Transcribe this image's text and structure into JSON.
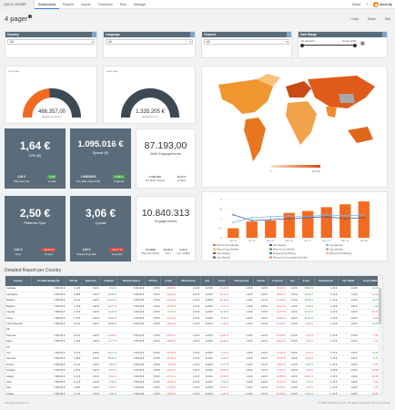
{
  "topbar": {
    "app_tab": "QUICK SHARE",
    "tabs": [
      "Dashboards",
      "Explore",
      "Import",
      "Transform",
      "Plan",
      "Manage"
    ],
    "user": "Sticky",
    "logo": "adverity"
  },
  "page": {
    "title": "4 pager",
    "tools": {
      "add": "+ Add",
      "share": "Share",
      "edit": "Edit"
    }
  },
  "filters": [
    {
      "label": "Country",
      "value": "All"
    },
    {
      "label": "Language",
      "value": "All"
    },
    {
      "label": "Channel",
      "value": "All"
    },
    {
      "label": "Date Range",
      "start": "01.06.2017",
      "end": "31.01.2018"
    }
  ],
  "gauges": [
    {
      "label": "Last year",
      "value": "466.357,00",
      "sub": "Budget (Cost) (Yr)",
      "min": "0",
      "max": "1.000.000",
      "fraction": 0.47
    },
    {
      "label": "Last year",
      "value": "1.335.205 €",
      "sub": "Budget (€) (Yr)",
      "min": "0",
      "max": "1.500.000",
      "fraction": 0.89
    }
  ],
  "kpis": {
    "cpa": {
      "value": "1,64 €",
      "label": "CPA (€)",
      "f1v": "1,61 €",
      "f1l": "Planned Cpa",
      "f2v": "2,65",
      "f2l": "Δ Cpa"
    },
    "spend": {
      "value": "1.095.016 €",
      "label": "Spend (€)",
      "f1v": "1.066.006 €",
      "f1l": "Pre Rate Spend (€)",
      "f2v": "5,45 €",
      "f2l": "Δ Spend"
    },
    "web": {
      "value": "87.193,00",
      "label": "Web Engagements",
      "f1v": "1.000.000",
      "f1l": "Pre Rate Spend",
      "f2v": "15,47 €",
      "f2l": "Δ Web"
    },
    "cpv": {
      "value": "2,50 €",
      "label": "Planned Cpvr",
      "f1v": "1,61 €",
      "f1l": "Cpvr",
      "f2v": "-26,94 %",
      "f2l": "Δ Cpvr"
    },
    "cpvisit": {
      "value": "3,06 €",
      "label": "Cpvisit",
      "f1v": "1,61 €",
      "f1l": "Planned Cpvisit",
      "f2v": "-19,77 %",
      "f2l": "Δ Cpvisit"
    },
    "eng": {
      "value": "10.840.313",
      "label": "Engagements",
      "f1v": "413.868",
      "f1l": "Planned Clicks",
      "f2v": "30,39 €",
      "f2l": "Cpvr",
      "f3v": "3,76 €",
      "f3l": "Cpc 10000"
    }
  },
  "map": {
    "legend_min": "0",
    "legend_max": "500.000"
  },
  "chart_data": {
    "type": "bar",
    "categories": [
      "Jun '17",
      "Jul '17",
      "Aug '17",
      "Sep '17",
      "Oct '17",
      "Nov '17",
      "Dec '17",
      "Jan '18"
    ],
    "series": [
      {
        "name": "Planned Cpm (Weekly)",
        "values": [
          0.5,
          0.85,
          0.9,
          1.3,
          1.4,
          1.6,
          1.75,
          1.9
        ]
      },
      {
        "name": "Cpc (Weekly)",
        "values": [
          1.2,
          0.9,
          0.95,
          1.0,
          1.05,
          1.1,
          1.0,
          1.05
        ]
      },
      {
        "name": "Cpa (Weekly)",
        "values": [
          0.8,
          1.05,
          1.1,
          1.15,
          1.1,
          1.2,
          1.15,
          1.2
        ]
      }
    ],
    "ylabel": "",
    "ylim": [
      0,
      2
    ],
    "legend": [
      "Planned Cpm (Weekly)",
      "Cpc (Weekly)",
      "Cpa (Weekly)",
      "Planned Cpa (Weekly)",
      "Planned Cpc (Weekly)",
      "Cpm (Weekly)",
      "Cost (Weekly)",
      "Engagements (Weekly)",
      "Planned Cost (Weekly)",
      "Cpvr (Weekly)",
      "Planned Cost (cumulated) (Weekly)"
    ]
  },
  "report": {
    "title": "Detailed Report per Country",
    "columns": [
      "Country",
      "Pre Rate Budget (€)",
      "CPA (€)",
      "Spend (€)",
      "Δ Spend",
      "Planned Spend",
      "CPV (€)",
      "Δ Cpv",
      "Planned Cpv",
      "Cpa",
      "Δ Cpa",
      "Planned Cpa",
      "Cpvisit",
      "Δ Cpvisit",
      "Cpc",
      "Δ Cpc",
      "Planned Cpc",
      "Cpc 10000",
      "Δ Cpc 10000"
    ],
    "rows": [
      [
        "Australia",
        "7.050,00 €",
        "1,11 €",
        "4,92 €",
        "3,92 %",
        "7.040,00 €",
        "2,50 €",
        "-18,58 %",
        "2,01 €",
        "11,69 €",
        "-14,20 %",
        "1,00 €",
        "2,40 €",
        "-50,11 %",
        "1,00 €",
        "48,60 %",
        "1,15 €",
        "1,00 €",
        "49,37 %"
      ],
      [
        "Azerbaijan",
        "7.050,00 €",
        "1,09 €",
        "4,92 €",
        "40,00 %",
        "7.040,00 €",
        "2,50 €",
        "-19,54 %",
        "2,01 €",
        "11,69 €",
        "-19,12 %",
        "1,00 €",
        "2,40 €",
        "-58,30 %",
        "1,00 €",
        "10,63 %",
        "1,15 €",
        "1,00 €",
        "-12,58 %"
      ],
      [
        "Belgium",
        "7.050,00 €",
        "1,13 €",
        "4,92 €",
        "-20,23 %",
        "7.040,00 €",
        "2,50 €",
        "-41,25 %",
        "2,01 €",
        "11,69 €",
        "-32,16 %",
        "1,00 €",
        "2,40 €",
        "-21,05 %",
        "1,00 €",
        "32,35 %",
        "1,15 €",
        "1,00 €",
        "19,07 %"
      ],
      [
        "Bulgaria",
        "7.050,00 €",
        "1,11 €",
        "4,92 €",
        "-14,17 %",
        "7.040,00 €",
        "2,50 €",
        "-16,45 %",
        "2,01 €",
        "11,69 €",
        "-9,21 %",
        "1,00 €",
        "2,40 €",
        "-52,44 %",
        "1,00 €",
        "8,38 %",
        "1,15 €",
        "1,00 €",
        "3,22 %"
      ],
      [
        "Canada",
        "7.050,00 €",
        "1,13 €",
        "4,92 €",
        "10,32 %",
        "7.040,00 €",
        "2,50 €",
        "17,22 %",
        "2,01 €",
        "11,69 €",
        "12,42 %",
        "1,00 €",
        "2,40 €",
        "-33,37 %",
        "1,00 €",
        "37,01 %",
        "1,15 €",
        "1,00 €",
        "-13,47 %"
      ],
      [
        "China",
        "7.050,00 €",
        "1,07 €",
        "4,92 €",
        "29,65 %",
        "7.040,00 €",
        "2,50 €",
        "-21,64 %",
        "2,01 €",
        "11,69 €",
        "8,76 %",
        "1,00 €",
        "2,40 €",
        "-45,09 %",
        "1,00 €",
        "21,18 %",
        "1,15 €",
        "1,00 €",
        "-9,28 %"
      ],
      [
        "Czech Republic",
        "7.050,00 €",
        "1,14 €",
        "4,92 €",
        "38,88 %",
        "7.040,00 €",
        "2,50 €",
        "-18,16 %",
        "2,01 €",
        "11,69 €",
        "-3,10 %",
        "1,00 €",
        "2,40 €",
        "-37,30 %",
        "1,00 €",
        "-6,96 %",
        "1,15 €",
        "1,00 €",
        "14,61 %"
      ],
      [
        "DE",
        "",
        "",
        "",
        "",
        "",
        "",
        "",
        "",
        "",
        "",
        "",
        "",
        "",
        "",
        "",
        "",
        "",
        ""
      ],
      [
        "Denmark",
        "7.050,00 €",
        "1,10 €",
        "4,92 €",
        "-21,68 %",
        "7.040,00 €",
        "2,50 €",
        "-45,70 %",
        "2,01 €",
        "11,69 €",
        "-14,81 %",
        "1,00 €",
        "2,40 €",
        "-22,18 %",
        "1,00 €",
        "-1,47 %",
        "1,15 €",
        "1,00 €",
        "-6,35 %"
      ],
      [
        "Egypt",
        "7.050,00 €",
        "1,11 €",
        "4,92 €",
        "-5,77 %",
        "7.040,00 €",
        "2,50 €",
        "-38,90 %",
        "2,01 €",
        "11,69 €",
        "-13,20 %",
        "1,00 €",
        "2,40 €",
        "-28,40 %",
        "1,00 €",
        "-7,92 %",
        "1,15 €",
        "1,00 €",
        "-2,37 %"
      ],
      [
        "FR",
        "",
        "",
        "",
        "",
        "",
        "",
        "",
        "",
        "",
        "",
        "",
        "",
        "",
        "",
        "",
        "",
        "",
        ""
      ],
      [
        "GLT",
        "7.050,00 €",
        "1,14 €",
        "4,92 €",
        "29,71 %",
        "7.040,00 €",
        "2,50 €",
        "-31,56 %",
        "2,01 €",
        "11,69 €",
        "-7,63 %",
        "1,00 €",
        "2,40 €",
        "-11,92 %",
        "1,00 €",
        "-4,31 %",
        "1,15 €",
        "1,00 €",
        "14,49 %"
      ],
      [
        "Germany",
        "7.050,00 €",
        "1,08 €",
        "4,92 €",
        "35,32 %",
        "7.040,00 €",
        "2,50 €",
        "-17,15 %",
        "2,01 €",
        "11,69 €",
        "-0,26 %",
        "1,00 €",
        "2,40 €",
        "-42,78 %",
        "1,00 €",
        "-8,93 %",
        "1,15 €",
        "1,00 €",
        "5,71 %"
      ],
      [
        "Greece",
        "7.050,00 €",
        "1,13 €",
        "4,92 €",
        "-8,51 %",
        "7.040,00 €",
        "2,50 €",
        "-3,52 %",
        "2,01 €",
        "11,69 €",
        "5,77 %",
        "1,00 €",
        "2,40 €",
        "-18,40 %",
        "1,00 €",
        "6,54 %",
        "1,15 €",
        "1,00 €",
        "-5,33 %"
      ],
      [
        "Hungary",
        "7.050,00 €",
        "1,10 €",
        "4,92 €",
        "-0,12 %",
        "7.040,00 €",
        "2,50 €",
        "-24,87 %",
        "2,01 €",
        "11,69 €",
        "-14,01 %",
        "1,00 €",
        "2,40 €",
        "-17,24 %",
        "1,00 €",
        "-4,09 %",
        "1,15 €",
        "1,00 €",
        "-16,92 %"
      ],
      [
        "Ireland",
        "7.050,00 €",
        "1,12 €",
        "4,92 €",
        "-8,44 %",
        "7.040,00 €",
        "2,50 €",
        "-27,65 %",
        "2,01 €",
        "11,69 €",
        "-19,68 %",
        "1,00 €",
        "2,40 €",
        "-46,68 %",
        "1,00 €",
        "-19,16 %",
        "1,15 €",
        "1,00 €",
        "-10,25 %"
      ],
      [
        "India",
        "7.050,00 €",
        "1,12 €",
        "4,92 €",
        "2,58 %",
        "7.040,00 €",
        "2,50 €",
        "-13,95 %",
        "2,01 €",
        "11,69 €",
        "9,64 %",
        "1,00 €",
        "2,40 €",
        "-51,57 %",
        "1,00 €",
        "7,37 %",
        "1,15 €",
        "1,00 €",
        "-1,04 %"
      ],
      [
        "Italy",
        "7.050,00 €",
        "1,09 €",
        "4,92 €",
        "-4,05 %",
        "7.040,00 €",
        "2,50 €",
        "-47,68 %",
        "2,01 €",
        "11,69 €",
        "-24,91 %",
        "1,00 €",
        "2,40 €",
        "-32,35 %",
        "1,00 €",
        "-4,45 %",
        "1,15 €",
        "1,00 €",
        "-4,40 %"
      ],
      [
        "Jordan",
        "7.050,00 €",
        "1,13 €",
        "4,92 €",
        "5,08 %",
        "7.040,00 €",
        "2,50 €",
        "-30,68 %",
        "2,01 €",
        "11,69 €",
        "-9,20 %",
        "1,00 €",
        "2,40 €",
        "-20,48 %",
        "1,00 €",
        "6,04 %",
        "1,15 €",
        "1,00 €",
        "-12,80 %"
      ]
    ]
  },
  "footer": {
    "left": "Adverity version 3.2",
    "right": "© 2018 Adverity GmbH. All rights reserved. Terms of service"
  }
}
